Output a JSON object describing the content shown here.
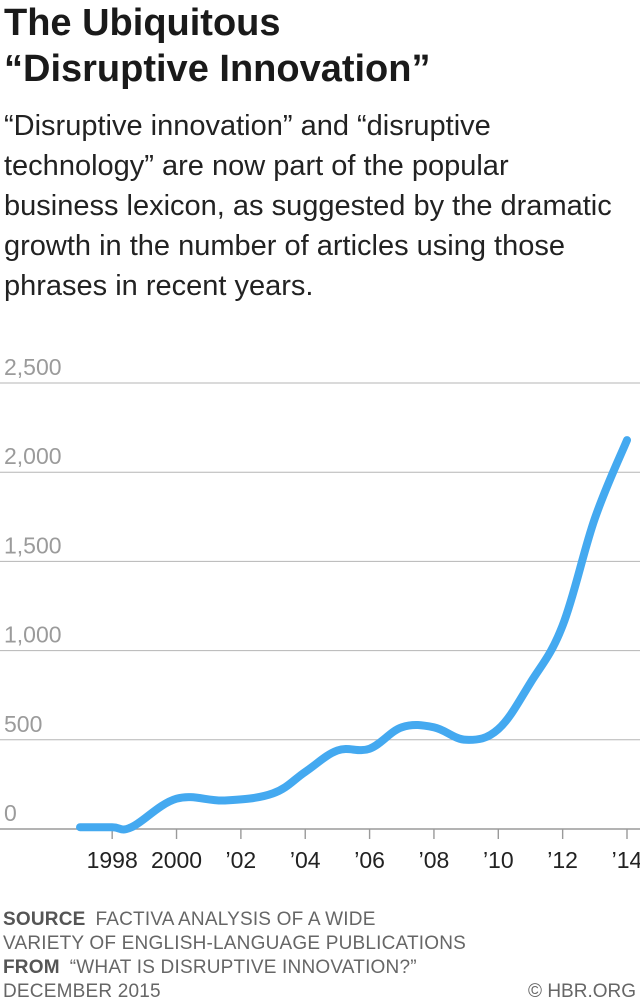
{
  "title_lines": [
    "The Ubiquitous",
    "“Disruptive Innovation”"
  ],
  "subtitle_lines": [
    "“Disruptive innovation” and “disruptive",
    "technology” are now part of the popular",
    "business lexicon, as suggested by the dramatic",
    "growth in the number of articles using those",
    "phrases in recent years."
  ],
  "footer": {
    "source_label": "SOURCE",
    "source_line1": "FACTIVA ANALYSIS OF A WIDE",
    "source_line2": "VARIETY OF ENGLISH-LANGUAGE PUBLICATIONS",
    "from_label": "FROM",
    "from_text": "“WHAT IS DISRUPTIVE INNOVATION?”",
    "date": "DECEMBER 2015",
    "credit": "© HBR.ORG"
  },
  "colors": {
    "line": "#44a9f0",
    "grid": "#b5b5b5",
    "ytick": "#9b9b9b",
    "xtick": "#222222"
  },
  "chart_data": {
    "type": "line",
    "title": "The Ubiquitous “Disruptive Innovation”",
    "xlabel": "",
    "ylabel": "",
    "ylim": [
      0,
      2500
    ],
    "xlim": [
      1997,
      2014
    ],
    "grid": true,
    "y_ticks": [
      0,
      500,
      1000,
      1500,
      2000,
      2500
    ],
    "y_tick_labels": [
      "0",
      "500",
      "1,000",
      "1,500",
      "2,000",
      "2,500"
    ],
    "x_ticks": [
      1998,
      2000,
      2002,
      2004,
      2006,
      2008,
      2010,
      2012,
      2014
    ],
    "x_tick_labels": [
      "1998",
      "2000",
      "’02",
      "’04",
      "’06",
      "’08",
      "’10",
      "’12",
      "’14"
    ],
    "series": [
      {
        "x": [
          1997,
          1998,
          1998.6,
          2000,
          2001.5,
          2003,
          2004,
          2005,
          2006,
          2007,
          2008,
          2009,
          2010,
          2011,
          2012,
          2013,
          2014
        ],
        "values": [
          10,
          10,
          10,
          170,
          160,
          200,
          320,
          440,
          450,
          570,
          570,
          500,
          560,
          820,
          1140,
          1740,
          2180
        ]
      }
    ]
  }
}
